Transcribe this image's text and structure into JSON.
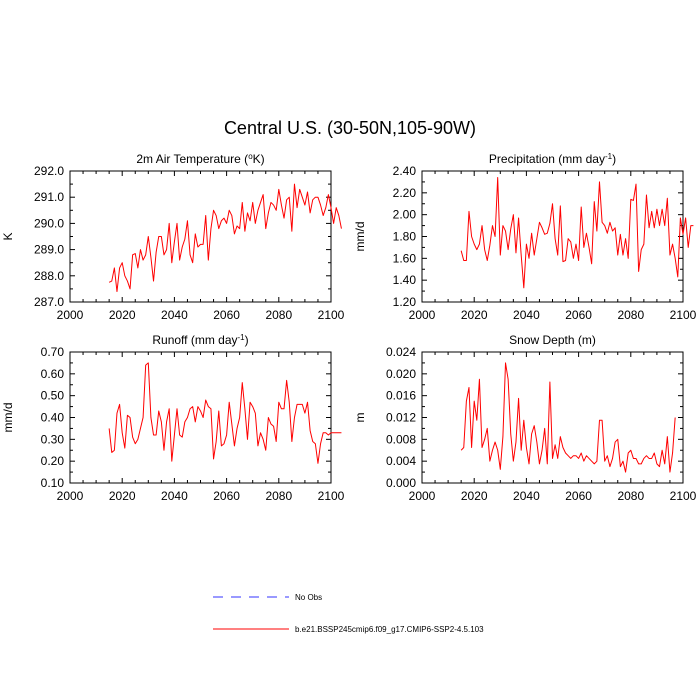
{
  "title": "Central U.S. (30-50N,105-90W)",
  "legend": {
    "placement": "bottom-center",
    "obs_label": "No Obs",
    "obs_color": "#3333ff",
    "model_label": "b.e21.BSSP245cmip6.f09_g17.CMIP6-SSP2-4.5.103",
    "model_color": "#ff0000"
  },
  "chart_data": [
    {
      "type": "line",
      "title": "2m Air Temperature (",
      "title_sup": "o",
      "title_after": "K)",
      "xlabel": "",
      "ylabel": "K",
      "xlim": [
        2000,
        2100
      ],
      "ylim": [
        287.0,
        292.0
      ],
      "xticks": [
        2000,
        2020,
        2040,
        2060,
        2080,
        2100
      ],
      "xtick_labels": [
        "2000",
        "2020",
        "2040",
        "2060",
        "2080",
        "2100"
      ],
      "yticks": [
        287,
        288,
        289,
        290,
        291,
        292
      ],
      "ytick_labels": [
        "287.0",
        "288.0",
        "289.0",
        "290.0",
        "291.0",
        "292.0"
      ],
      "ydecimals": 1,
      "x_start": 2015,
      "series": [
        {
          "name": "b.e21.BSSP245cmip6.f09_g17.CMIP6-SSP2-4.5.103",
          "color": "#ff0000",
          "values": [
            287.75,
            287.8,
            288.3,
            287.4,
            288.3,
            288.5,
            288.0,
            287.8,
            287.5,
            288.8,
            288.85,
            288.3,
            289.0,
            288.6,
            288.8,
            289.5,
            288.7,
            287.8,
            288.9,
            289.5,
            289.5,
            288.8,
            289.0,
            290.0,
            288.5,
            289.3,
            290.0,
            288.6,
            289.1,
            289.4,
            290.1,
            288.8,
            288.5,
            289.6,
            289.1,
            289.2,
            289.2,
            290.3,
            288.6,
            289.8,
            290.5,
            290.3,
            289.8,
            290.1,
            290.2,
            290.0,
            290.5,
            290.3,
            289.6,
            289.9,
            289.8,
            290.8,
            289.7,
            290.4,
            290.1,
            290.8,
            290.0,
            290.5,
            290.8,
            291.1,
            289.8,
            290.4,
            290.8,
            290.7,
            290.5,
            291.3,
            290.7,
            290.2,
            290.9,
            291.0,
            289.7,
            291.5,
            290.6,
            291.3,
            291.0,
            290.7,
            291.2,
            290.4,
            290.9,
            291.0,
            291.0,
            290.7,
            290.3,
            290.6,
            291.1,
            290.6,
            290.0,
            290.6,
            290.3,
            289.8
          ]
        }
      ]
    },
    {
      "type": "line",
      "title": "Precipitation (mm day",
      "title_sup": "-1",
      "title_after": ")",
      "xlabel": "",
      "ylabel": "mm/d",
      "xlim": [
        2000,
        2100
      ],
      "ylim": [
        1.2,
        2.4
      ],
      "xticks": [
        2000,
        2020,
        2040,
        2060,
        2080,
        2100
      ],
      "xtick_labels": [
        "2000",
        "2020",
        "2040",
        "2060",
        "2080",
        "2100"
      ],
      "yticks": [
        1.2,
        1.4,
        1.6,
        1.8,
        2.0,
        2.2,
        2.4
      ],
      "ytick_labels": [
        "1.20",
        "1.40",
        "1.60",
        "1.80",
        "2.00",
        "2.20",
        "2.40"
      ],
      "ydecimals": 2,
      "x_start": 2015,
      "series": [
        {
          "name": "b.e21.BSSP245cmip6.f09_g17.CMIP6-SSP2-4.5.103",
          "color": "#ff0000",
          "values": [
            1.67,
            1.58,
            1.58,
            2.03,
            1.8,
            1.73,
            1.68,
            1.73,
            1.9,
            1.68,
            1.58,
            1.72,
            1.9,
            1.8,
            2.34,
            1.63,
            1.9,
            1.85,
            1.68,
            1.87,
            2.0,
            1.65,
            1.97,
            1.63,
            1.33,
            1.73,
            1.6,
            1.83,
            1.63,
            1.78,
            1.93,
            1.88,
            1.82,
            1.83,
            1.92,
            2.1,
            1.78,
            1.63,
            2.08,
            1.57,
            1.58,
            1.78,
            1.75,
            1.6,
            1.73,
            1.58,
            2.07,
            1.7,
            1.83,
            1.7,
            1.55,
            2.12,
            1.85,
            2.3,
            1.93,
            1.9,
            1.83,
            1.93,
            1.85,
            1.88,
            1.63,
            1.82,
            1.63,
            1.78,
            1.6,
            2.14,
            2.13,
            2.28,
            1.48,
            1.68,
            1.73,
            2.18,
            1.88,
            2.03,
            1.88,
            2.05,
            1.9,
            2.05,
            1.9,
            2.15,
            1.63,
            1.73,
            1.6,
            1.43,
            1.97,
            1.82,
            1.97,
            1.7,
            1.9,
            1.9
          ]
        }
      ]
    },
    {
      "type": "line",
      "title": "Runoff (mm day",
      "title_sup": "-1",
      "title_after": ")",
      "xlabel": "",
      "ylabel": "mm/d",
      "xlim": [
        2000,
        2100
      ],
      "ylim": [
        0.1,
        0.7
      ],
      "xticks": [
        2000,
        2020,
        2040,
        2060,
        2080,
        2100
      ],
      "xtick_labels": [
        "2000",
        "2020",
        "2040",
        "2060",
        "2080",
        "2100"
      ],
      "yticks": [
        0.1,
        0.2,
        0.3,
        0.4,
        0.5,
        0.6,
        0.7
      ],
      "ytick_labels": [
        "0.10",
        "0.20",
        "0.30",
        "0.40",
        "0.50",
        "0.60",
        "0.70"
      ],
      "ydecimals": 2,
      "x_start": 2015,
      "series": [
        {
          "name": "b.e21.BSSP245cmip6.f09_g17.CMIP6-SSP2-4.5.103",
          "color": "#ff0000",
          "values": [
            0.35,
            0.24,
            0.25,
            0.42,
            0.46,
            0.33,
            0.26,
            0.41,
            0.4,
            0.31,
            0.28,
            0.3,
            0.35,
            0.4,
            0.64,
            0.65,
            0.4,
            0.32,
            0.32,
            0.43,
            0.38,
            0.25,
            0.38,
            0.44,
            0.2,
            0.32,
            0.44,
            0.32,
            0.31,
            0.38,
            0.4,
            0.44,
            0.45,
            0.38,
            0.45,
            0.43,
            0.4,
            0.48,
            0.45,
            0.44,
            0.21,
            0.29,
            0.43,
            0.27,
            0.28,
            0.32,
            0.47,
            0.37,
            0.27,
            0.35,
            0.4,
            0.56,
            0.44,
            0.3,
            0.47,
            0.45,
            0.42,
            0.27,
            0.33,
            0.3,
            0.25,
            0.4,
            0.37,
            0.36,
            0.29,
            0.47,
            0.44,
            0.44,
            0.57,
            0.47,
            0.29,
            0.4,
            0.46,
            0.46,
            0.46,
            0.42,
            0.47,
            0.34,
            0.29,
            0.28,
            0.19,
            0.28,
            0.33,
            0.33,
            0.32,
            0.33,
            0.33,
            0.33,
            0.33,
            0.33
          ]
        }
      ]
    },
    {
      "type": "line",
      "title": "Snow Depth (m)",
      "title_sup": "",
      "title_after": "",
      "xlabel": "",
      "ylabel": "m",
      "xlim": [
        2000,
        2100
      ],
      "ylim": [
        0.0,
        0.024
      ],
      "xticks": [
        2000,
        2020,
        2040,
        2060,
        2080,
        2100
      ],
      "xtick_labels": [
        "2000",
        "2020",
        "2040",
        "2060",
        "2080",
        "2100"
      ],
      "yticks": [
        0.0,
        0.004,
        0.008,
        0.012,
        0.016,
        0.02,
        0.024
      ],
      "ytick_labels": [
        "0.000",
        "0.004",
        "0.008",
        "0.012",
        "0.016",
        "0.020",
        "0.024"
      ],
      "ydecimals": 3,
      "x_start": 2015,
      "series": [
        {
          "name": "b.e21.BSSP245cmip6.f09_g17.CMIP6-SSP2-4.5.103",
          "color": "#ff0000",
          "values": [
            0.006,
            0.0065,
            0.015,
            0.0175,
            0.0065,
            0.015,
            0.0115,
            0.019,
            0.0065,
            0.008,
            0.01,
            0.004,
            0.006,
            0.0075,
            0.006,
            0.0025,
            0.0085,
            0.022,
            0.019,
            0.009,
            0.004,
            0.0075,
            0.0155,
            0.006,
            0.0115,
            0.0065,
            0.0035,
            0.009,
            0.0105,
            0.0075,
            0.0035,
            0.006,
            0.01,
            0.0035,
            0.0185,
            0.0045,
            0.007,
            0.0045,
            0.0085,
            0.0065,
            0.0055,
            0.005,
            0.0045,
            0.005,
            0.005,
            0.0045,
            0.0055,
            0.004,
            0.005,
            0.0045,
            0.004,
            0.0035,
            0.004,
            0.0115,
            0.0115,
            0.004,
            0.005,
            0.003,
            0.0045,
            0.0075,
            0.008,
            0.003,
            0.004,
            0.002,
            0.0055,
            0.006,
            0.0045,
            0.0045,
            0.0035,
            0.0035,
            0.0045,
            0.005,
            0.0045,
            0.0045,
            0.0055,
            0.0035,
            0.003,
            0.006,
            0.0035,
            0.0085,
            0.002,
            0.0055,
            0.012
          ]
        }
      ]
    }
  ]
}
